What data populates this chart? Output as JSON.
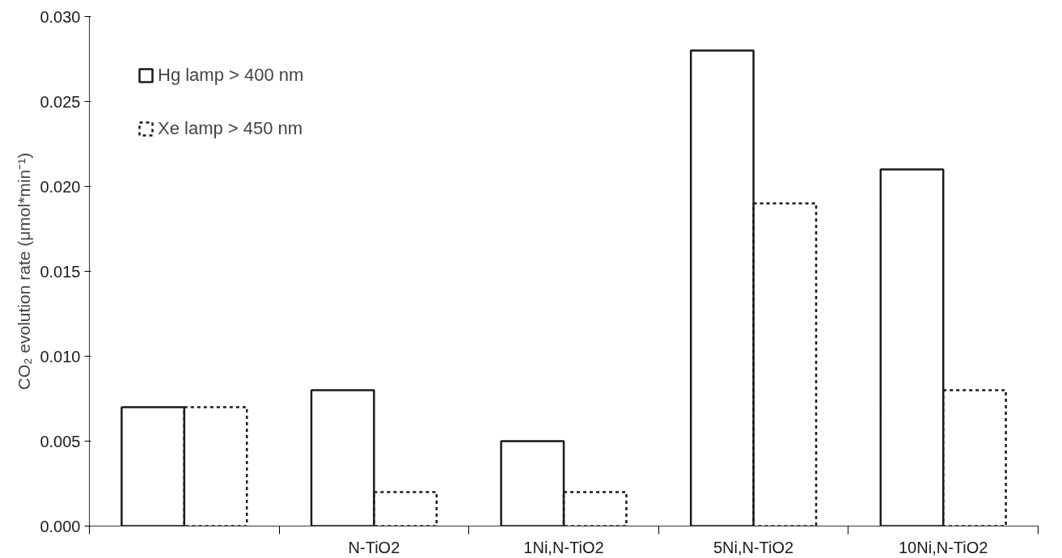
{
  "chart_data": {
    "type": "bar",
    "ylabel": "CO₂ evolution rate (μmol*min⁻¹)",
    "categories": [
      null,
      "N-TiO2",
      "1Ni,N-TiO2",
      "5Ni,N-TiO2",
      "10Ni,N-TiO2"
    ],
    "series": [
      {
        "name": "Hg lamp > 400 nm",
        "color": "#1a1a1a",
        "line_style": "solid",
        "values": [
          0.007,
          0.008,
          0.005,
          0.028,
          0.021
        ]
      },
      {
        "name": "Xe lamp > 450 nm",
        "color": "#1a1a1a",
        "line_style": "dotted",
        "values": [
          0.007,
          0.002,
          0.002,
          0.019,
          0.008
        ]
      }
    ],
    "ylim": [
      0,
      0.03
    ],
    "yticks": [
      {
        "value": 0,
        "label": "0.000"
      },
      {
        "value": 0.005,
        "label": "0.005"
      },
      {
        "value": 0.01,
        "label": "0.010"
      },
      {
        "value": 0.015,
        "label": "0.015"
      },
      {
        "value": 0.02,
        "label": "0.020"
      },
      {
        "value": 0.025,
        "label": "0.025"
      },
      {
        "value": 0.03,
        "label": "0.030"
      }
    ],
    "grid": false,
    "legend": "top left"
  }
}
